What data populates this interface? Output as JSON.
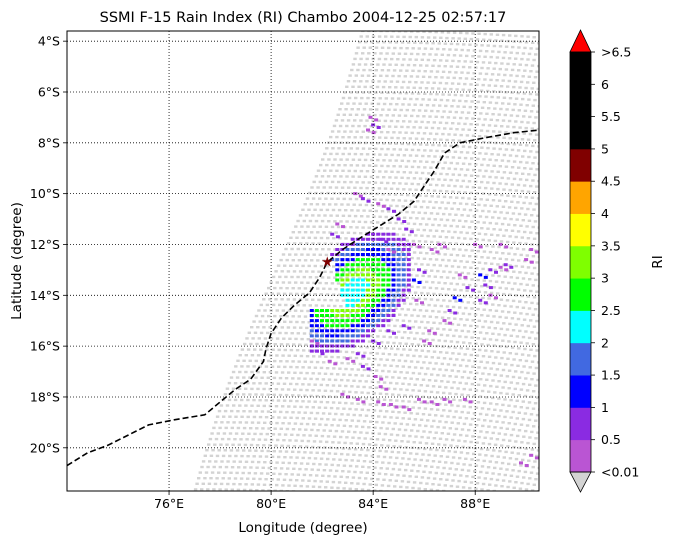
{
  "title": "SSMI F-15 Rain Index (RI) Chambo 2004-12-25 02:57:17",
  "map": {
    "xlabel": "Longitude (degree)",
    "ylabel": "Latitude (degree)",
    "lon_range": [
      72.0,
      90.5
    ],
    "lat_range": [
      -21.7,
      -3.6
    ],
    "lon_ticks": [
      {
        "value": 76,
        "label": "76°E"
      },
      {
        "value": 80,
        "label": "80°E"
      },
      {
        "value": 84,
        "label": "84°E"
      },
      {
        "value": 88,
        "label": "88°E"
      }
    ],
    "lat_ticks": [
      {
        "value": -4,
        "label": "4°S"
      },
      {
        "value": -6,
        "label": "6°S"
      },
      {
        "value": -8,
        "label": "8°S"
      },
      {
        "value": -10,
        "label": "10°S"
      },
      {
        "value": -12,
        "label": "12°S"
      },
      {
        "value": -14,
        "label": "14°S"
      },
      {
        "value": -16,
        "label": "16°S"
      },
      {
        "value": -18,
        "label": "18°S"
      },
      {
        "value": -20,
        "label": "20°S"
      }
    ],
    "grid": true,
    "grid_style": "dotted",
    "swath_color": "#d3d3d3",
    "storm_marker": {
      "lon": 82.2,
      "lat": -12.7,
      "color": "#800000"
    },
    "storm_track": [
      [
        72.0,
        -20.7
      ],
      [
        72.8,
        -20.2
      ],
      [
        73.6,
        -19.9
      ],
      [
        74.4,
        -19.5
      ],
      [
        75.2,
        -19.1
      ],
      [
        76.2,
        -18.9
      ],
      [
        77.4,
        -18.7
      ],
      [
        78.0,
        -18.2
      ],
      [
        78.6,
        -17.7
      ],
      [
        79.2,
        -17.3
      ],
      [
        79.7,
        -16.6
      ],
      [
        79.8,
        -16.1
      ],
      [
        80.0,
        -15.5
      ],
      [
        80.4,
        -14.9
      ],
      [
        80.9,
        -14.4
      ],
      [
        81.5,
        -13.9
      ],
      [
        81.9,
        -13.3
      ],
      [
        82.2,
        -12.7
      ],
      [
        82.8,
        -12.2
      ],
      [
        83.4,
        -11.8
      ],
      [
        84.2,
        -11.3
      ],
      [
        85.0,
        -10.8
      ],
      [
        85.6,
        -10.3
      ],
      [
        86.0,
        -9.7
      ],
      [
        86.4,
        -9.1
      ],
      [
        86.8,
        -8.4
      ],
      [
        87.4,
        -8.0
      ],
      [
        88.4,
        -7.8
      ],
      [
        89.5,
        -7.6
      ],
      [
        90.5,
        -7.5
      ]
    ]
  },
  "colorbar": {
    "label": "RI",
    "tick_labels": [
      "<0.01",
      "0.5",
      "1",
      "1.5",
      "2",
      "2.5",
      "3",
      "3.5",
      "4",
      "4.5",
      "5",
      "5.5",
      "6",
      ">6.5"
    ],
    "colors": [
      "#ba55d3",
      "#8a2be2",
      "#0000ff",
      "#4169e1",
      "#00ffff",
      "#00ff00",
      "#7fff00",
      "#ffff00",
      "#ffa500",
      "#800000",
      "#000000",
      "#000000",
      "#000000"
    ],
    "under_color": "#d3d3d3",
    "over_color": "#ff0000"
  }
}
